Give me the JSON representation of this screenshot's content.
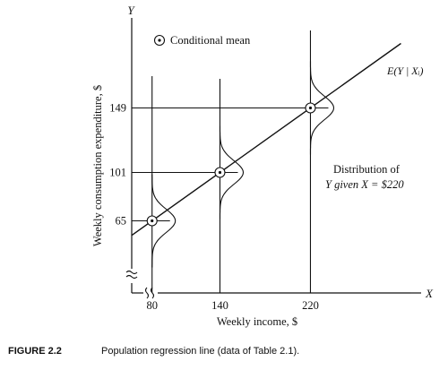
{
  "chart_data": {
    "type": "line",
    "title": "",
    "xlabel": "Weekly income, $",
    "ylabel": "Weekly consumption expenditure, $",
    "x_axis_letter": "X",
    "y_axis_letter": "Y",
    "xlim": [
      62,
      300
    ],
    "ylim": [
      22,
      195
    ],
    "x_ticks": [
      80,
      140,
      220
    ],
    "y_ticks": [
      65,
      101,
      149
    ],
    "x_tick_labels": [
      "80",
      "140",
      "220"
    ],
    "y_tick_labels": [
      "65",
      "101",
      "149"
    ],
    "points": [
      {
        "x": 80,
        "y": 65
      },
      {
        "x": 140,
        "y": 101
      },
      {
        "x": 220,
        "y": 149
      }
    ],
    "regression_line": {
      "label": "E(Y | Xᵢ)",
      "x": [
        62,
        300
      ],
      "y": [
        54.2,
        197
      ]
    },
    "legend": {
      "label": "Conditional mean",
      "position": "top-left"
    },
    "annotation": {
      "line1": "Distribution of",
      "line2": "Y given X  = $220"
    },
    "grid": false
  },
  "caption": {
    "label": "FIGURE 2.2",
    "text": "Population regression line (data of Table 2.1)."
  }
}
